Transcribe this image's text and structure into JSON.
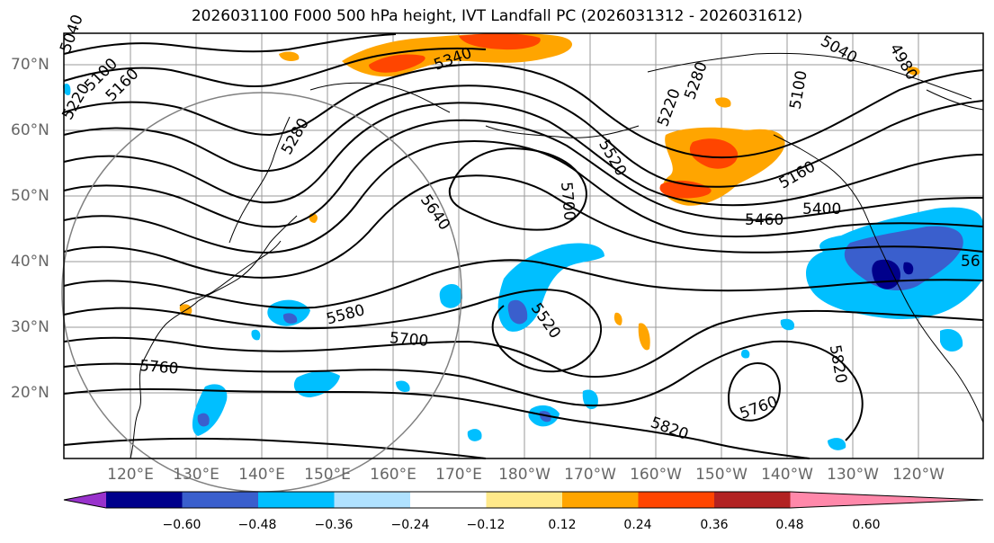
{
  "title": "2026031100 F000 500 hPa height, IVT Landfall PC (2026031312 - 2026031612)",
  "lat_labels": [
    "70°N",
    "60°N",
    "50°N",
    "40°N",
    "30°N",
    "20°N"
  ],
  "lon_labels": [
    "120°E",
    "130°E",
    "140°E",
    "150°E",
    "160°E",
    "170°E",
    "180°W",
    "170°W",
    "160°W",
    "150°W",
    "140°W",
    "130°W",
    "120°W"
  ],
  "contour_labels": [
    "5040",
    "5100",
    "5160",
    "5220",
    "5280",
    "5340",
    "5220",
    "5280",
    "5040",
    "4980",
    "5100",
    "5160",
    "5400",
    "5460",
    "5520",
    "5700",
    "5640",
    "5580",
    "5700",
    "5760",
    "5520",
    "5760",
    "5820",
    "5820",
    "56"
  ],
  "colorbar": {
    "tick_labels": [
      "−0.60",
      "−0.48",
      "−0.36",
      "−0.24",
      "−0.12",
      "0.12",
      "0.24",
      "0.36",
      "0.48",
      "0.60"
    ],
    "colors": [
      "#9932cc",
      "#00008b",
      "#3a5fcd",
      "#00bfff",
      "#b0e2ff",
      "#ffffff",
      "#ffe98a",
      "#ffa500",
      "#ff4500",
      "#b22222",
      "#ff88aa"
    ]
  }
}
